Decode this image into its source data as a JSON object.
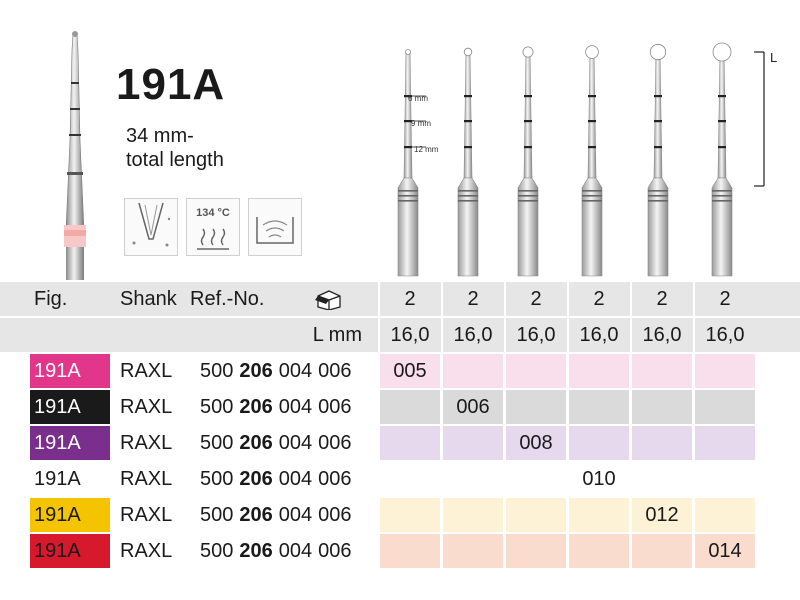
{
  "product": {
    "title": "191A",
    "subtitle_line1": "34 mm-",
    "subtitle_line2": "total length",
    "icon_temp": "134 °C"
  },
  "diagram": {
    "marks": [
      "6 mm",
      "9 mm",
      "12 mm"
    ],
    "length_label": "L"
  },
  "header": {
    "fig": "Fig.",
    "shank": "Shank",
    "ref": "Ref.-No.",
    "pack_icon": "package-box-icon",
    "pack_sizes": [
      "2",
      "2",
      "2",
      "2",
      "2",
      "2"
    ],
    "lmm_label": "L mm",
    "lengths": [
      "16,0",
      "16,0",
      "16,0",
      "16,0",
      "16,0",
      "16,0"
    ]
  },
  "rows": [
    {
      "fig": "191A",
      "shank": "RAXL",
      "ref_a": "500",
      "ref_b": "206",
      "ref_c": "004",
      "ref_d": "006",
      "size_col": 0,
      "size": "005",
      "color": "#e2368b",
      "tint": "#f9dfeb",
      "fig_text": "#ffffff"
    },
    {
      "fig": "191A",
      "shank": "RAXL",
      "ref_a": "500",
      "ref_b": "206",
      "ref_c": "004",
      "ref_d": "006",
      "size_col": 1,
      "size": "006",
      "color": "#1a1a1a",
      "tint": "#dadada",
      "fig_text": "#ffffff"
    },
    {
      "fig": "191A",
      "shank": "RAXL",
      "ref_a": "500",
      "ref_b": "206",
      "ref_c": "004",
      "ref_d": "006",
      "size_col": 2,
      "size": "008",
      "color": "#7a2f8d",
      "tint": "#e6d9ee",
      "fig_text": "#ffffff"
    },
    {
      "fig": "191A",
      "shank": "RAXL",
      "ref_a": "500",
      "ref_b": "206",
      "ref_c": "004",
      "ref_d": "006",
      "size_col": 3,
      "size": "010",
      "color": "#ffffff",
      "tint": "#ffffff",
      "fig_text": "#1a1a1a"
    },
    {
      "fig": "191A",
      "shank": "RAXL",
      "ref_a": "500",
      "ref_b": "206",
      "ref_c": "004",
      "ref_d": "006",
      "size_col": 4,
      "size": "012",
      "color": "#f5c400",
      "tint": "#fdf2d6",
      "fig_text": "#1a1a1a"
    },
    {
      "fig": "191A",
      "shank": "RAXL",
      "ref_a": "500",
      "ref_b": "206",
      "ref_c": "004",
      "ref_d": "006",
      "size_col": 5,
      "size": "014",
      "color": "#d7192d",
      "tint": "#f9dccd",
      "fig_text": "#1a1a1a"
    }
  ]
}
